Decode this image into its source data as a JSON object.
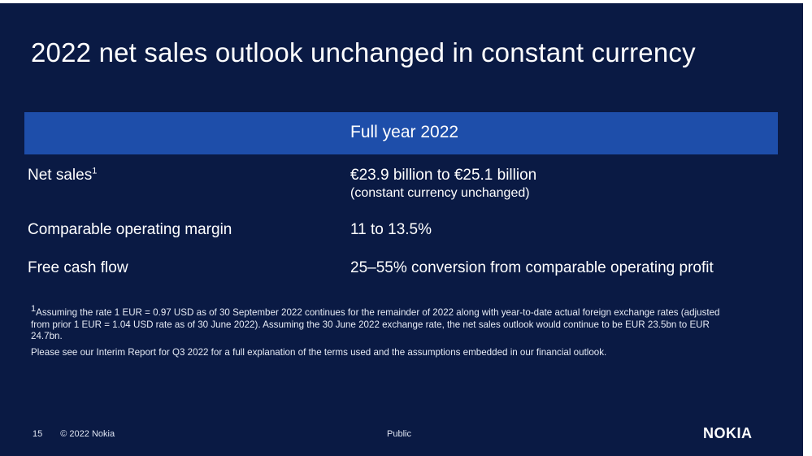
{
  "slide": {
    "title": "2022 net sales outlook unchanged in constant currency",
    "table": {
      "column_header": "Full year 2022",
      "rows": [
        {
          "label": "Net sales",
          "sup": "1",
          "value": "€23.9 billion to €25.1 billion",
          "subvalue": "(constant currency unchanged)"
        },
        {
          "label": "Comparable operating margin",
          "value": "11 to 13.5%"
        },
        {
          "label": "Free cash flow",
          "value": "25–55% conversion from comparable operating profit"
        }
      ]
    },
    "footnotes": {
      "note1_sup": "1",
      "note1": "Assuming the rate 1 EUR = 0.97 USD as of 30 September 2022 continues for the remainder of 2022 along with year-to-date actual foreign exchange rates (adjusted from prior 1 EUR = 1.04 USD rate as of 30 June 2022). Assuming the 30 June 2022 exchange rate, the net sales outlook would continue to be EUR 23.5bn to EUR 24.7bn.",
      "note2": "Please see our Interim Report for Q3 2022 for a full explanation of the terms used and the assumptions embedded in our financial outlook."
    },
    "footer": {
      "page_number": "15",
      "copyright": "© 2022 Nokia",
      "classification": "Public",
      "logo_text": "NOKIA"
    }
  },
  "colors": {
    "background": "#0a1a44",
    "header_band": "#1e4eaa",
    "text": "#ffffff"
  }
}
